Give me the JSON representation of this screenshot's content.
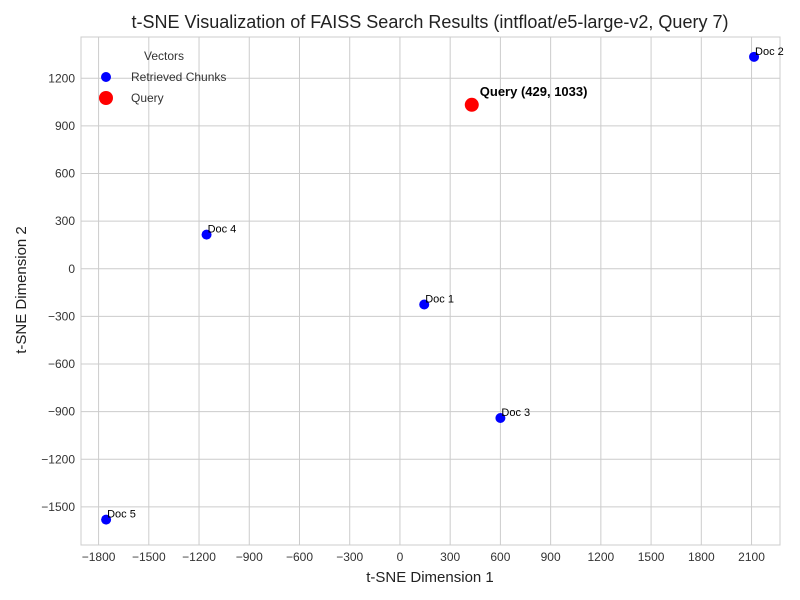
{
  "chart_data": {
    "type": "scatter",
    "title": "t-SNE Visualization of FAISS Search Results (intfloat/e5-large-v2, Query 7)",
    "xlabel": "t-SNE Dimension 1",
    "ylabel": "t-SNE Dimension 2",
    "xlim": [
      -1905,
      2270
    ],
    "ylim": [
      -1740,
      1460
    ],
    "xticks": [
      -1800,
      -1500,
      -1200,
      -900,
      -600,
      -300,
      0,
      300,
      600,
      900,
      1200,
      1500,
      1800,
      2100
    ],
    "yticks": [
      -1500,
      -1200,
      -900,
      -600,
      -300,
      0,
      300,
      600,
      900,
      1200
    ],
    "grid": true,
    "legend": {
      "title": "Vectors",
      "placement": "top-left",
      "entries": [
        {
          "name": "Retrieved Chunks",
          "color": "#0000ff"
        },
        {
          "name": "Query",
          "color": "#ff0000"
        }
      ]
    },
    "series": [
      {
        "name": "Retrieved Chunks",
        "color": "#0000ff",
        "points": [
          {
            "label": "Doc 1",
            "x": 145,
            "y": -225
          },
          {
            "label": "Doc 2",
            "x": 2115,
            "y": 1335
          },
          {
            "label": "Doc 3",
            "x": 600,
            "y": -940
          },
          {
            "label": "Doc 4",
            "x": -1155,
            "y": 215
          },
          {
            "label": "Doc 5",
            "x": -1755,
            "y": -1580
          }
        ]
      },
      {
        "name": "Query",
        "color": "#ff0000",
        "points": [
          {
            "label": "Query (429, 1033)",
            "x": 429,
            "y": 1033
          }
        ]
      }
    ]
  }
}
